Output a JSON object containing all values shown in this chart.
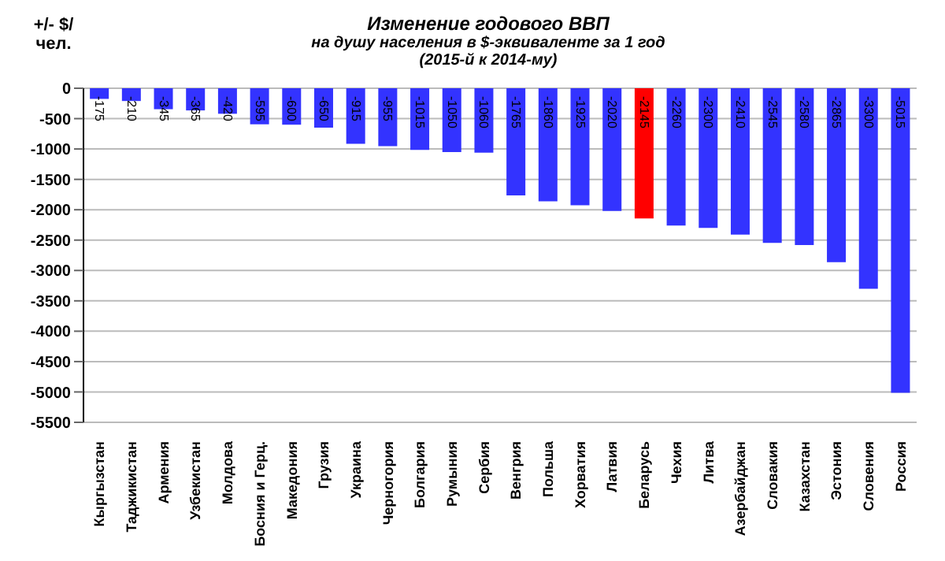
{
  "chart_data": {
    "type": "bar",
    "title": "Изменение годового ВВП",
    "subtitle": "на душу населения в $-эквиваленте за 1 год (2015-й к 2014-му)",
    "ylabel": "+/- $/чел.",
    "categories": [
      "Кыргызстан",
      "Таджикистан",
      "Армения",
      "Узбекистан",
      "Молдова",
      "Босния и Герц.",
      "Македония",
      "Грузия",
      "Украина",
      "Черногория",
      "Болгария",
      "Румыния",
      "Сербия",
      "Венгрия",
      "Польша",
      "Хорватия",
      "Латвия",
      "Беларусь",
      "Чехия",
      "Литва",
      "Азербайджан",
      "Словакия",
      "Казахстан",
      "Эстония",
      "Словения",
      "Россия"
    ],
    "values": [
      -175,
      -210,
      -345,
      -365,
      -420,
      -595,
      -600,
      -650,
      -915,
      -955,
      -1015,
      -1050,
      -1060,
      -1765,
      -1860,
      -1925,
      -2020,
      -2145,
      -2260,
      -2300,
      -2410,
      -2545,
      -2580,
      -2865,
      -3300,
      -5015
    ],
    "colors": [
      "#3333ff",
      "#3333ff",
      "#3333ff",
      "#3333ff",
      "#3333ff",
      "#3333ff",
      "#3333ff",
      "#3333ff",
      "#3333ff",
      "#3333ff",
      "#3333ff",
      "#3333ff",
      "#3333ff",
      "#3333ff",
      "#3333ff",
      "#3333ff",
      "#3333ff",
      "#ff0000",
      "#3333ff",
      "#3333ff",
      "#3333ff",
      "#3333ff",
      "#3333ff",
      "#3333ff",
      "#3333ff",
      "#3333ff"
    ],
    "ylim": [
      -5500,
      0
    ],
    "yticks": [
      0,
      -500,
      -1000,
      -1500,
      -2000,
      -2500,
      -3000,
      -3500,
      -4000,
      -4500,
      -5000,
      -5500
    ],
    "grid": "y",
    "data_labels": true
  }
}
